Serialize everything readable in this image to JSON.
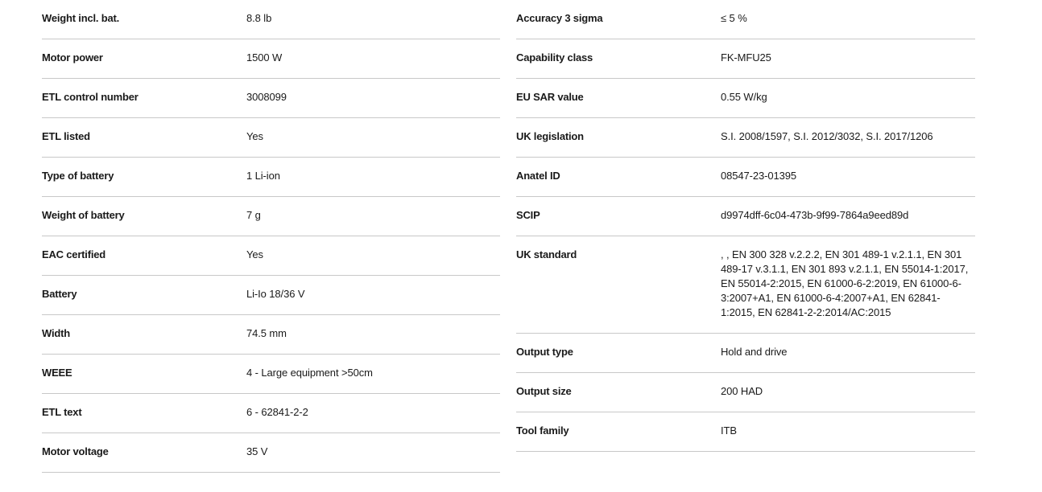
{
  "left": [
    {
      "label": "Weight incl. bat.",
      "value": "8.8 lb"
    },
    {
      "label": "Motor power",
      "value": "1500 W"
    },
    {
      "label": "ETL control number",
      "value": "3008099"
    },
    {
      "label": "ETL listed",
      "value": "Yes"
    },
    {
      "label": "Type of battery",
      "value": "1 Li-ion"
    },
    {
      "label": "Weight of battery",
      "value": "7 g"
    },
    {
      "label": "EAC certified",
      "value": "Yes"
    },
    {
      "label": "Battery",
      "value": "Li-Io 18/36 V"
    },
    {
      "label": "Width",
      "value": "74.5 mm"
    },
    {
      "label": "WEEE",
      "value": "4 - Large equipment >50cm"
    },
    {
      "label": "ETL text",
      "value": "6 - 62841-2-2"
    },
    {
      "label": "Motor voltage",
      "value": "35 V"
    }
  ],
  "right": [
    {
      "label": "Accuracy 3 sigma",
      "value": "≤ 5 %"
    },
    {
      "label": "Capability class",
      "value": "FK-MFU25"
    },
    {
      "label": "EU SAR value",
      "value": "0.55 W/kg"
    },
    {
      "label": "UK legislation",
      "value": "S.I. 2008/1597, S.I. 2012/3032, S.I. 2017/1206"
    },
    {
      "label": "Anatel ID",
      "value": "08547-23-01395"
    },
    {
      "label": "SCIP",
      "value": "d9974dff-6c04-473b-9f99-7864a9eed89d"
    },
    {
      "label": "UK standard",
      "value": ", , EN 300 328 v.2.2.2, EN 301 489-1 v.2.1.1, EN 301 489-17 v.3.1.1, EN 301 893 v.2.1.1, EN 55014-1:2017, EN 55014-2:2015, EN 61000-6-2:2019, EN 61000-6-3:2007+A1, EN 61000-6-4:2007+A1, EN 62841-1:2015, EN 62841-2-2:2014/AC:2015"
    },
    {
      "label": "Output type",
      "value": "Hold and drive"
    },
    {
      "label": "Output size",
      "value": "200 HAD"
    },
    {
      "label": "Tool family",
      "value": "ITB"
    }
  ]
}
